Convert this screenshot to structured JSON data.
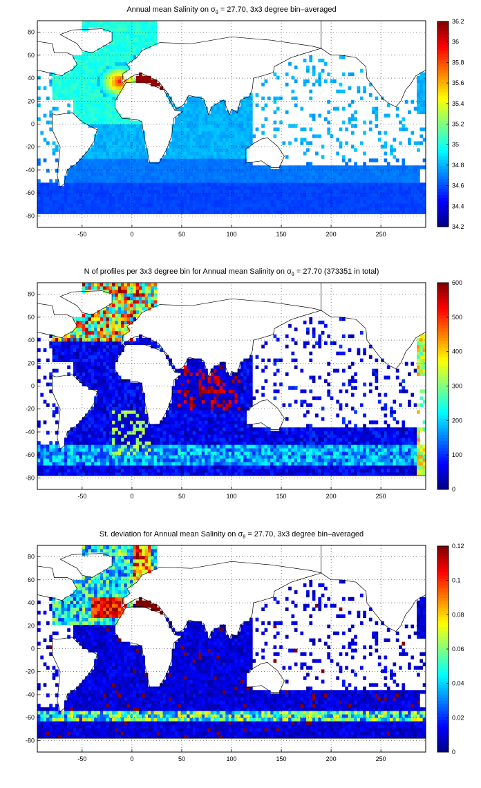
{
  "chart_data": [
    {
      "type": "heatmap",
      "title_pre": "Annual mean Salinity on ",
      "title_sym": "σ",
      "title_sub": "θ",
      "title_post": " = 27.70, 3x3 degree bin–averaged",
      "xticks": [
        "-50",
        "0",
        "50",
        "100",
        "150",
        "200",
        "250"
      ],
      "xtick_values": [
        -50,
        0,
        50,
        100,
        150,
        200,
        250
      ],
      "yticks": [
        "80",
        "60",
        "40",
        "20",
        "0",
        "-20",
        "-40",
        "-60",
        "-80"
      ],
      "ytick_values": [
        80,
        60,
        40,
        20,
        0,
        -20,
        -40,
        -60,
        -80
      ],
      "xlim": [
        -95,
        295
      ],
      "ylim": [
        -90,
        90
      ],
      "colorbar": {
        "ticks": [
          "36.2",
          "36",
          "35.8",
          "35.6",
          "35.4",
          "35.2",
          "35",
          "34.8",
          "34.6",
          "34.4",
          "34.2"
        ],
        "tick_values": [
          36.2,
          36,
          35.8,
          35.6,
          35.4,
          35.2,
          35,
          34.8,
          34.6,
          34.4,
          34.2
        ],
        "range": [
          34.2,
          36.2
        ]
      },
      "colormap": "jet",
      "grid": true,
      "field": "salinity"
    },
    {
      "type": "heatmap",
      "title_pre": "N of profiles per 3x3 degree bin for Annual mean Salinity on ",
      "title_sym": "σ",
      "title_sub": "θ",
      "title_post": " = 27.70 (373351 in total)",
      "xticks": [
        "-50",
        "0",
        "50",
        "100",
        "150",
        "200",
        "250"
      ],
      "xtick_values": [
        -50,
        0,
        50,
        100,
        150,
        200,
        250
      ],
      "yticks": [
        "80",
        "60",
        "40",
        "20",
        "0",
        "-20",
        "-40",
        "-60",
        "-80"
      ],
      "ytick_values": [
        80,
        60,
        40,
        20,
        0,
        -20,
        -40,
        -60,
        -80
      ],
      "xlim": [
        -95,
        295
      ],
      "ylim": [
        -90,
        90
      ],
      "colorbar": {
        "ticks": [
          "600",
          "500",
          "400",
          "300",
          "200",
          "100",
          "0"
        ],
        "tick_values": [
          600,
          500,
          400,
          300,
          200,
          100,
          0
        ],
        "range": [
          0,
          600
        ]
      },
      "colormap": "jet",
      "grid": true,
      "field": "count"
    },
    {
      "type": "heatmap",
      "title_pre": "St. deviation for Annual mean Salinity on ",
      "title_sym": "σ",
      "title_sub": "θ",
      "title_post": " = 27.70, 3x3 degree bin–averaged",
      "xticks": [
        "-50",
        "0",
        "50",
        "100",
        "150",
        "200",
        "250"
      ],
      "xtick_values": [
        -50,
        0,
        50,
        100,
        150,
        200,
        250
      ],
      "yticks": [
        "80",
        "60",
        "40",
        "20",
        "0",
        "-20",
        "-40",
        "-60",
        "-80"
      ],
      "ytick_values": [
        80,
        60,
        40,
        20,
        0,
        -20,
        -40,
        -60,
        -80
      ],
      "xlim": [
        -95,
        295
      ],
      "ylim": [
        -90,
        90
      ],
      "colorbar": {
        "ticks": [
          "0.12",
          "0.1",
          "0.08",
          "0.06",
          "0.04",
          "0.02",
          "0"
        ],
        "tick_values": [
          0.12,
          0.1,
          0.08,
          0.06,
          0.04,
          0.02,
          0
        ],
        "range": [
          0,
          0.12
        ]
      },
      "colormap": "jet",
      "grid": true,
      "field": "stddev"
    }
  ]
}
